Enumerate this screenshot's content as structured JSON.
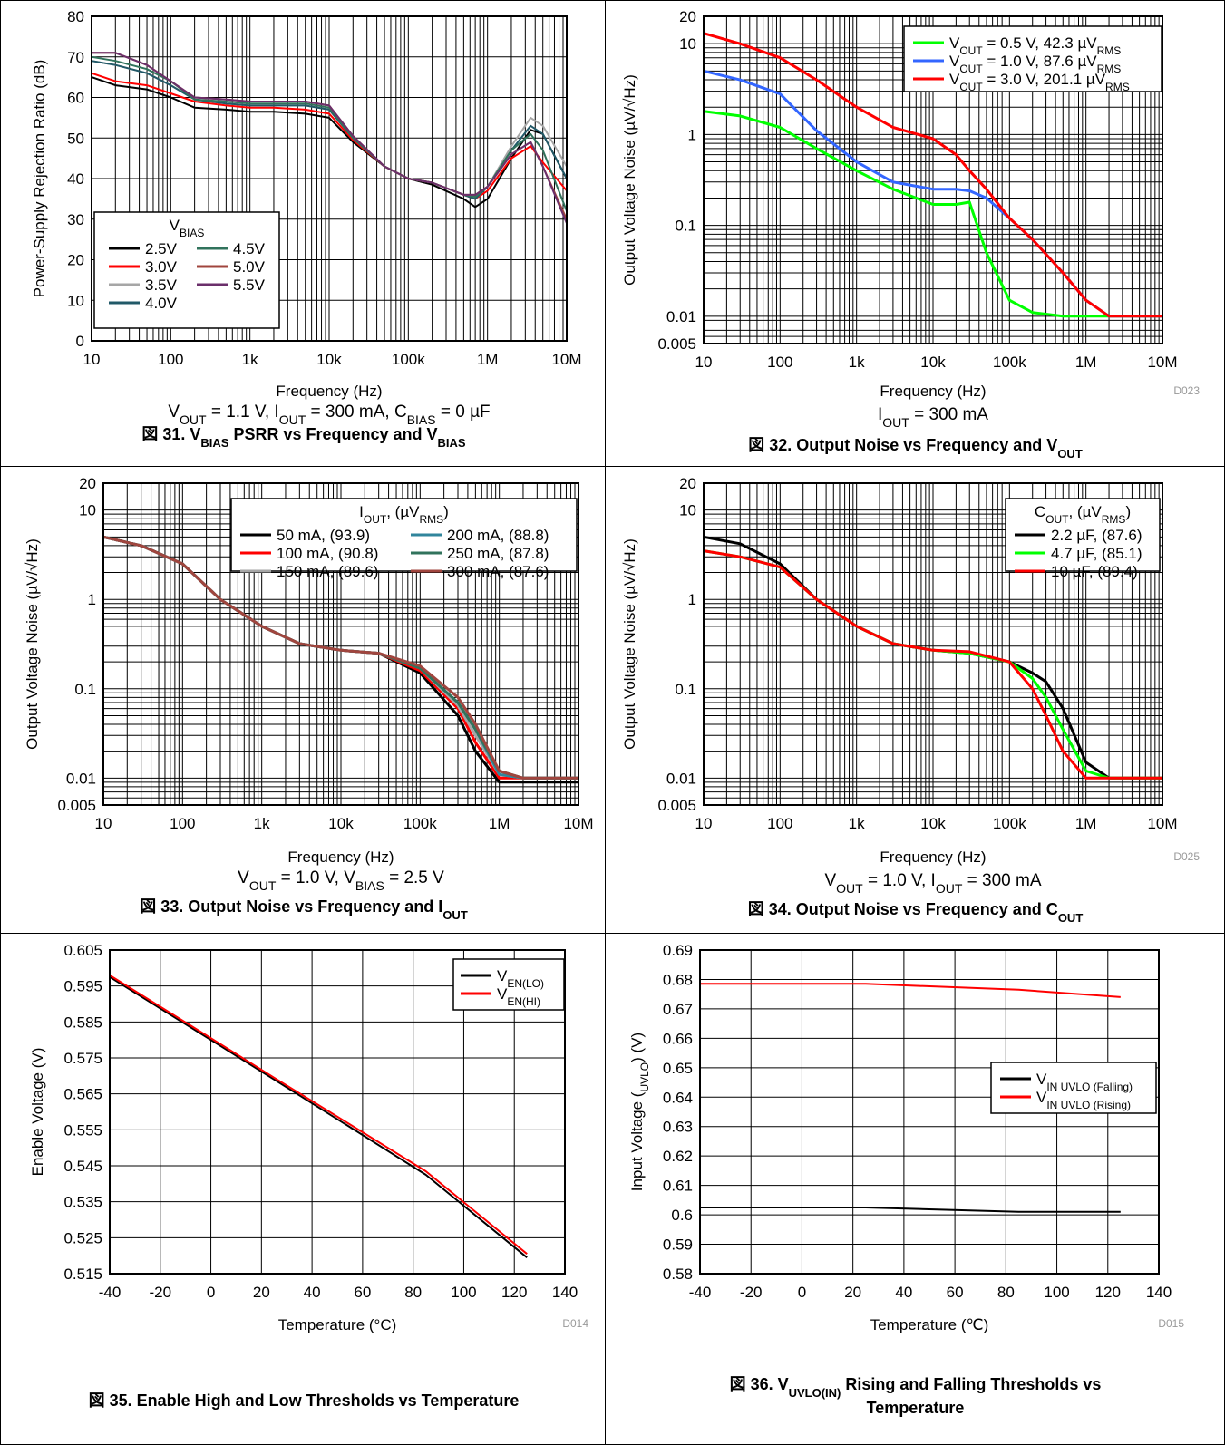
{
  "chart_data": [
    {
      "type": "line",
      "xscale": "log",
      "yscale": "linear",
      "xlabel": "Frequency (Hz)",
      "ylabel": "Power-Supply Rejection Ratio (dB)",
      "xlim": [
        10,
        10000000
      ],
      "ylim": [
        0,
        80
      ],
      "xticks": [
        "10",
        "100",
        "1k",
        "10k",
        "100k",
        "1M",
        "10M"
      ],
      "yticks": [
        "0",
        "10",
        "20",
        "30",
        "40",
        "50",
        "60",
        "70",
        "80"
      ],
      "legend_title": "VBIAS",
      "legend_title_parts": [
        "V",
        "BIAS"
      ],
      "legend_placement": "bottom-left",
      "conditions": "VOUT = 1.1 V, IOUT = 300 mA, CBIAS = 0 µF",
      "conditions_parts": [
        [
          "V",
          ""
        ],
        [
          "OUT",
          "sub"
        ],
        [
          " = 1.1 V, I",
          ""
        ],
        [
          "OUT",
          "sub"
        ],
        [
          " = 300 mA, C",
          ""
        ],
        [
          "BIAS",
          "sub"
        ],
        [
          " = 0 µF",
          ""
        ]
      ],
      "caption": "図 31. VBIAS PSRR vs Frequency and VBIAS",
      "caption_parts": [
        [
          "図 31. V",
          ""
        ],
        [
          "BIAS",
          "sub"
        ],
        [
          " PSRR vs Frequency and V",
          ""
        ],
        [
          "BIAS",
          "sub"
        ]
      ],
      "x": [
        10,
        20,
        50,
        100,
        200,
        500,
        1000,
        2000,
        5000,
        10000,
        20000,
        50000,
        100000,
        200000,
        500000,
        700000,
        1000000,
        2000000,
        3500000,
        5000000,
        10000000
      ],
      "series": [
        {
          "name": "2.5V",
          "color": "#000000",
          "values": [
            65,
            63,
            62,
            60,
            57.5,
            57,
            56.5,
            56.5,
            56,
            55,
            49,
            43,
            40,
            38.5,
            35,
            33,
            35,
            45,
            52,
            51,
            40
          ]
        },
        {
          "name": "3.0V",
          "color": "#ff0000",
          "values": [
            66,
            64,
            63,
            61,
            59,
            58,
            57.5,
            57.5,
            57,
            56,
            49.5,
            43,
            40,
            39,
            36,
            35,
            37,
            45,
            48,
            44,
            37
          ]
        },
        {
          "name": "3.5V",
          "color": "#a6a6a6",
          "values": [
            69,
            68,
            66,
            63,
            59.5,
            58.5,
            58,
            58,
            58,
            57,
            50,
            43,
            40,
            39,
            36,
            35,
            38,
            48,
            55,
            53,
            43
          ]
        },
        {
          "name": "4.0V",
          "color": "#215968",
          "values": [
            69,
            68,
            66,
            63,
            59.5,
            58.5,
            58,
            58,
            58,
            57,
            50,
            43,
            40,
            39,
            36,
            35,
            38,
            47,
            53,
            51,
            40
          ]
        },
        {
          "name": "4.5V",
          "color": "#31735c",
          "values": [
            70,
            69,
            67,
            64,
            59.5,
            59,
            58.5,
            58.5,
            58.5,
            57.5,
            50,
            43,
            40,
            39,
            36,
            35.5,
            38,
            47,
            51,
            47,
            32
          ]
        },
        {
          "name": "5.0V",
          "color": "#a0453e",
          "values": [
            71,
            71,
            68,
            64,
            60,
            59.5,
            59,
            59,
            59,
            58,
            50.5,
            43,
            40,
            39,
            36,
            36,
            38,
            46,
            49,
            43,
            30
          ]
        },
        {
          "name": "5.5V",
          "color": "#6b2f6b",
          "values": [
            71,
            71,
            68,
            64,
            60,
            59.5,
            59,
            59,
            59,
            58,
            50.5,
            43,
            40,
            39,
            36,
            36,
            38,
            46,
            49,
            43,
            29
          ]
        }
      ]
    },
    {
      "type": "line",
      "xscale": "log",
      "yscale": "log",
      "xlabel": "Frequency (Hz)",
      "ylabel": "Output Voltage Noise (µV/√Hz)",
      "xlim": [
        10,
        10000000
      ],
      "ylim": [
        0.005,
        20
      ],
      "xticks": [
        "10",
        "100",
        "1k",
        "10k",
        "100k",
        "1M",
        "10M"
      ],
      "yticks": [
        "0.005",
        "0.01",
        "0.1",
        "1",
        "10",
        "20"
      ],
      "legend_placement": "top-right",
      "code": "D023",
      "conditions": "IOUT = 300 mA",
      "conditions_parts": [
        [
          "I",
          ""
        ],
        [
          "OUT",
          "sub"
        ],
        [
          " = 300 mA",
          ""
        ]
      ],
      "caption": "図 32. Output Noise vs Frequency and VOUT",
      "caption_parts": [
        [
          "図 32. Output Noise vs Frequency and V",
          ""
        ],
        [
          "OUT",
          "sub"
        ]
      ],
      "x": [
        10,
        30,
        100,
        300,
        1000,
        3000,
        10000,
        20000,
        30000,
        50000,
        100000,
        200000,
        500000,
        1000000,
        2000000,
        10000000
      ],
      "series": [
        {
          "name": "VOUT = 0.5 V, 42.3 µVRMS",
          "label_parts": [
            [
              "V",
              ""
            ],
            [
              "OUT",
              "sub"
            ],
            [
              " = 0.5 V, 42.3 µV",
              ""
            ],
            [
              "RMS",
              "sub"
            ]
          ],
          "color": "#00ff00",
          "values": [
            1.8,
            1.6,
            1.2,
            0.7,
            0.4,
            0.25,
            0.17,
            0.17,
            0.18,
            0.05,
            0.015,
            0.011,
            0.01,
            0.01,
            0.01,
            0.01
          ]
        },
        {
          "name": "VOUT = 1.0 V, 87.6 µVRMS",
          "label_parts": [
            [
              "V",
              ""
            ],
            [
              "OUT",
              "sub"
            ],
            [
              " = 1.0 V, 87.6 µV",
              ""
            ],
            [
              "RMS",
              "sub"
            ]
          ],
          "color": "#3366ff",
          "values": [
            5,
            4,
            2.8,
            1.1,
            0.5,
            0.3,
            0.25,
            0.25,
            0.24,
            0.2,
            0.12,
            0.07,
            0.03,
            0.015,
            0.01,
            0.01
          ]
        },
        {
          "name": "VOUT = 3.0 V, 201.1 µVRMS",
          "label_parts": [
            [
              "V",
              ""
            ],
            [
              "OUT",
              "sub"
            ],
            [
              " = 3.0 V, 201.1 µV",
              ""
            ],
            [
              "RMS",
              "sub"
            ]
          ],
          "color": "#ff0000",
          "values": [
            13,
            10,
            7,
            4,
            2,
            1.2,
            0.9,
            0.6,
            0.4,
            0.25,
            0.12,
            0.07,
            0.03,
            0.015,
            0.01,
            0.01
          ]
        }
      ]
    },
    {
      "type": "line",
      "xscale": "log",
      "yscale": "log",
      "xlabel": "Frequency (Hz)",
      "ylabel": "Output Voltage Noise (µV/√Hz)",
      "xlim": [
        10,
        10000000
      ],
      "ylim": [
        0.005,
        20
      ],
      "xticks": [
        "10",
        "100",
        "1k",
        "10k",
        "100k",
        "1M",
        "10M"
      ],
      "yticks": [
        "0.005",
        "0.01",
        "0.1",
        "1",
        "10",
        "20"
      ],
      "legend_title": "IOUT, (µVRMS)",
      "legend_title_parts": [
        [
          "I",
          ""
        ],
        [
          "OUT",
          "sub"
        ],
        [
          ", (µV",
          ""
        ],
        [
          "RMS",
          "sub"
        ],
        [
          ")",
          ""
        ]
      ],
      "legend_placement": "top-right",
      "conditions": "VOUT = 1.0 V, VBIAS = 2.5 V",
      "conditions_parts": [
        [
          "V",
          ""
        ],
        [
          "OUT",
          "sub"
        ],
        [
          " = 1.0 V, V",
          ""
        ],
        [
          "BIAS",
          "sub"
        ],
        [
          " = 2.5 V",
          ""
        ]
      ],
      "caption": "図 33. Output Noise vs Frequency and IOUT",
      "caption_parts": [
        [
          "図 33. Output Noise vs Frequency and I",
          ""
        ],
        [
          "OUT",
          "sub"
        ]
      ],
      "x": [
        10,
        30,
        100,
        300,
        1000,
        3000,
        10000,
        30000,
        100000,
        300000,
        500000,
        1000000,
        2000000,
        10000000
      ],
      "series": [
        {
          "name": "50 mA, (93.9)",
          "color": "#000000",
          "values": [
            5,
            4,
            2.5,
            1,
            0.5,
            0.32,
            0.27,
            0.25,
            0.15,
            0.05,
            0.02,
            0.009,
            0.009,
            0.009
          ]
        },
        {
          "name": "100 mA, (90.8)",
          "color": "#ff0000",
          "values": [
            5,
            4,
            2.5,
            1,
            0.5,
            0.32,
            0.27,
            0.25,
            0.16,
            0.06,
            0.025,
            0.01,
            0.01,
            0.01
          ]
        },
        {
          "name": "150 mA, (89.6)",
          "color": "#a6a6a6",
          "values": [
            5,
            4,
            2.5,
            1,
            0.5,
            0.32,
            0.27,
            0.25,
            0.17,
            0.065,
            0.03,
            0.011,
            0.01,
            0.01
          ]
        },
        {
          "name": "200 mA, (88.8)",
          "color": "#31859c",
          "values": [
            5,
            4,
            2.5,
            1,
            0.5,
            0.32,
            0.27,
            0.25,
            0.17,
            0.07,
            0.035,
            0.011,
            0.01,
            0.01
          ]
        },
        {
          "name": "250 mA, (87.8)",
          "color": "#31735c",
          "values": [
            5,
            4,
            2.5,
            1,
            0.5,
            0.32,
            0.27,
            0.25,
            0.17,
            0.07,
            0.035,
            0.012,
            0.01,
            0.01
          ]
        },
        {
          "name": "300 mA, (87.6)",
          "color": "#a0453e",
          "values": [
            5,
            4,
            2.5,
            1,
            0.5,
            0.32,
            0.27,
            0.25,
            0.18,
            0.08,
            0.04,
            0.012,
            0.01,
            0.01
          ]
        }
      ]
    },
    {
      "type": "line",
      "xscale": "log",
      "yscale": "log",
      "xlabel": "Frequency (Hz)",
      "ylabel": "Output Voltage Noise (µV/√Hz)",
      "xlim": [
        10,
        10000000
      ],
      "ylim": [
        0.005,
        20
      ],
      "xticks": [
        "10",
        "100",
        "1k",
        "10k",
        "100k",
        "1M",
        "10M"
      ],
      "yticks": [
        "0.005",
        "0.01",
        "0.1",
        "1",
        "10",
        "20"
      ],
      "legend_title": "COUT, (µVRMS)",
      "legend_title_parts": [
        [
          "C",
          ""
        ],
        [
          "OUT",
          "sub"
        ],
        [
          ", (µV",
          ""
        ],
        [
          "RMS",
          "sub"
        ],
        [
          ")",
          ""
        ]
      ],
      "legend_placement": "top-right",
      "code": "D025",
      "conditions": "VOUT = 1.0 V, IOUT = 300 mA",
      "conditions_parts": [
        [
          "V",
          ""
        ],
        [
          "OUT",
          "sub"
        ],
        [
          " = 1.0 V, I",
          ""
        ],
        [
          "OUT",
          "sub"
        ],
        [
          " = 300 mA",
          ""
        ]
      ],
      "caption": "図 34. Output Noise vs Frequency and COUT",
      "caption_parts": [
        [
          "図 34. Output Noise vs Frequency and C",
          ""
        ],
        [
          "OUT",
          "sub"
        ]
      ],
      "x": [
        10,
        30,
        100,
        300,
        1000,
        3000,
        10000,
        30000,
        100000,
        200000,
        300000,
        500000,
        1000000,
        2000000,
        10000000
      ],
      "series": [
        {
          "name": "2.2 µF, (87.6)",
          "color": "#000000",
          "values": [
            5,
            4.2,
            2.5,
            1,
            0.5,
            0.32,
            0.27,
            0.25,
            0.2,
            0.15,
            0.12,
            0.06,
            0.015,
            0.01,
            0.01
          ]
        },
        {
          "name": "4.7 µF, (85.1)",
          "color": "#00ff00",
          "values": [
            3.5,
            3,
            2.3,
            1,
            0.5,
            0.32,
            0.27,
            0.25,
            0.2,
            0.13,
            0.08,
            0.035,
            0.012,
            0.01,
            0.01
          ]
        },
        {
          "name": "10 µF, (89.4)",
          "color": "#ff0000",
          "values": [
            3.5,
            3,
            2.3,
            1,
            0.5,
            0.32,
            0.27,
            0.26,
            0.2,
            0.1,
            0.05,
            0.02,
            0.01,
            0.01,
            0.01
          ]
        }
      ]
    },
    {
      "type": "line",
      "xscale": "linear",
      "yscale": "linear",
      "xlabel": "Temperature (°C)",
      "ylabel": "Enable Voltage (V)",
      "xlim": [
        -40,
        140
      ],
      "ylim": [
        0.515,
        0.605
      ],
      "xticks": [
        "-40",
        "-20",
        "0",
        "20",
        "40",
        "60",
        "80",
        "100",
        "120",
        "140"
      ],
      "yticks": [
        "0.515",
        "0.525",
        "0.535",
        "0.545",
        "0.555",
        "0.565",
        "0.575",
        "0.585",
        "0.595",
        "0.605"
      ],
      "legend_placement": "top-right",
      "code": "D014",
      "caption": "図 35. Enable High and Low Thresholds vs Temperature",
      "caption_parts": [
        [
          "図 35. Enable High and Low Thresholds vs Temperature",
          ""
        ]
      ],
      "x": [
        -40,
        0,
        25,
        85,
        125
      ],
      "series": [
        {
          "name": "VEN(LO)",
          "label_parts": [
            [
              "V",
              ""
            ],
            [
              "EN(LO)",
              "sub"
            ]
          ],
          "color": "#000000",
          "values": [
            0.5975,
            0.58,
            0.569,
            0.5425,
            0.5195
          ]
        },
        {
          "name": "VEN(HI)",
          "label_parts": [
            [
              "V",
              ""
            ],
            [
              "EN(HI)",
              "sub"
            ]
          ],
          "color": "#ff0000",
          "values": [
            0.598,
            0.5805,
            0.5695,
            0.5435,
            0.5205
          ]
        }
      ]
    },
    {
      "type": "line",
      "xscale": "linear",
      "yscale": "linear",
      "xlabel": "Temperature (℃)",
      "ylabel": "Input Voltage (UVLO) (V)",
      "ylabel_parts": [
        [
          "Input Voltage (",
          ""
        ],
        [
          "UVLO",
          "sub"
        ],
        [
          ") (V)",
          ""
        ]
      ],
      "xlim": [
        -40,
        140
      ],
      "ylim": [
        0.58,
        0.69
      ],
      "xticks": [
        "-40",
        "-20",
        "0",
        "20",
        "40",
        "60",
        "80",
        "100",
        "120",
        "140"
      ],
      "yticks": [
        "0.58",
        "0.59",
        "0.6",
        "0.61",
        "0.62",
        "0.63",
        "0.64",
        "0.65",
        "0.66",
        "0.67",
        "0.68",
        "0.69"
      ],
      "legend_placement": "middle-right",
      "code": "D015",
      "caption": "図 36. VUVLO(IN) Rising and Falling Thresholds vs Temperature",
      "caption_parts": [
        [
          "図 36. V",
          ""
        ],
        [
          "UVLO(IN)",
          "sub"
        ],
        [
          " Rising and Falling Thresholds vs",
          ""
        ],
        [
          "\nTemperature",
          ""
        ]
      ],
      "x": [
        -40,
        0,
        25,
        85,
        125
      ],
      "series": [
        {
          "name": "VIN UVLO (Falling)",
          "label_parts": [
            [
              "V",
              ""
            ],
            [
              "IN UVLO (Falling)",
              "sub"
            ]
          ],
          "color": "#000000",
          "values": [
            0.6025,
            0.6025,
            0.6025,
            0.601,
            0.601
          ]
        },
        {
          "name": "VIN UVLO (Rising)",
          "label_parts": [
            [
              "V",
              ""
            ],
            [
              "IN UVLO (Rising)",
              "sub"
            ]
          ],
          "color": "#ff0000",
          "values": [
            0.6785,
            0.6785,
            0.6785,
            0.6765,
            0.674
          ]
        }
      ]
    }
  ]
}
